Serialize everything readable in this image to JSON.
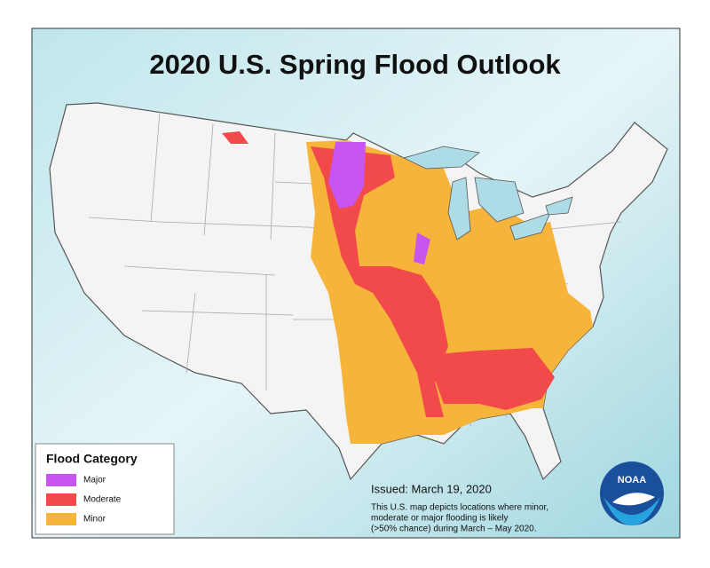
{
  "header": {
    "title": "2020 U.S. Spring Flood Outlook"
  },
  "legend": {
    "title": "Flood Category",
    "items": [
      {
        "label": "Major",
        "color": "#c855f0"
      },
      {
        "label": "Moderate",
        "color": "#f24a4a"
      },
      {
        "label": "Minor",
        "color": "#f6b53a"
      }
    ]
  },
  "note": {
    "issued": "Issued:  March 19, 2020",
    "lines": [
      "This U.S. map depicts locations where minor,",
      "moderate or major flooding is likely",
      "(>50% chance) during March – May 2020."
    ]
  },
  "logo": {
    "text": "NOAA"
  }
}
